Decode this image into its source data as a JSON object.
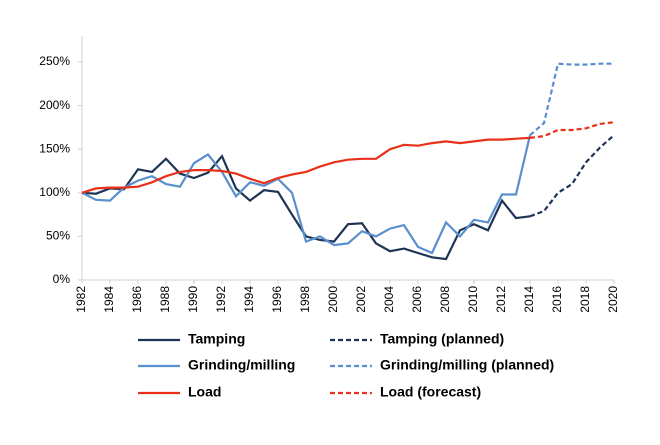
{
  "chart_data": {
    "type": "line",
    "x": [
      1982,
      1983,
      1984,
      1985,
      1986,
      1987,
      1988,
      1989,
      1990,
      1991,
      1992,
      1993,
      1994,
      1995,
      1996,
      1997,
      1998,
      1999,
      2000,
      2001,
      2002,
      2003,
      2004,
      2005,
      2006,
      2007,
      2008,
      2009,
      2010,
      2011,
      2012,
      2013,
      2014,
      2015,
      2016,
      2017,
      2018,
      2019,
      2020
    ],
    "xlim": [
      1982,
      2020
    ],
    "xticks": [
      1982,
      1984,
      1986,
      1988,
      1990,
      1992,
      1994,
      1996,
      1998,
      2000,
      2002,
      2004,
      2006,
      2008,
      2010,
      2012,
      2014,
      2016,
      2018,
      2020
    ],
    "ylim": [
      0,
      250
    ],
    "yticks": [
      {
        "value": 0,
        "label": "0%"
      },
      {
        "value": 50,
        "label": "50%"
      },
      {
        "value": 100,
        "label": "100%"
      },
      {
        "value": 150,
        "label": "150%"
      },
      {
        "value": 200,
        "label": "200%"
      },
      {
        "value": 250,
        "label": "250%"
      }
    ],
    "grid": false,
    "legend": "bottom",
    "series": [
      {
        "name": "Tamping",
        "color": "#1f3454",
        "dashed": false,
        "values": [
          100,
          99,
          105,
          104,
          127,
          124,
          139,
          122,
          117,
          123,
          142,
          105,
          91,
          103,
          101,
          75,
          50,
          46,
          44,
          64,
          65,
          42,
          33,
          36,
          31,
          26,
          24,
          57,
          64,
          57,
          91,
          71,
          73,
          null,
          null,
          null,
          null,
          null,
          null
        ]
      },
      {
        "name": "Tamping (planned)",
        "color": "#1f3454",
        "dashed": true,
        "values": [
          null,
          null,
          null,
          null,
          null,
          null,
          null,
          null,
          null,
          null,
          null,
          null,
          null,
          null,
          null,
          null,
          null,
          null,
          null,
          null,
          null,
          null,
          null,
          null,
          null,
          null,
          null,
          null,
          null,
          null,
          null,
          null,
          73,
          79,
          100,
          110,
          135,
          152,
          166
        ]
      },
      {
        "name": "Grinding/milling",
        "color": "#5a8fcf",
        "dashed": false,
        "values": [
          100,
          92,
          91,
          106,
          114,
          119,
          110,
          107,
          134,
          144,
          124,
          96,
          112,
          108,
          116,
          100,
          44,
          50,
          40,
          42,
          56,
          50,
          59,
          63,
          38,
          31,
          66,
          50,
          69,
          66,
          98,
          98,
          166,
          null,
          null,
          null,
          null,
          null,
          null
        ]
      },
      {
        "name": "Grinding/milling (planned)",
        "color": "#5a8fcf",
        "dashed": true,
        "values": [
          null,
          null,
          null,
          null,
          null,
          null,
          null,
          null,
          null,
          null,
          null,
          null,
          null,
          null,
          null,
          null,
          null,
          null,
          null,
          null,
          null,
          null,
          null,
          null,
          null,
          null,
          null,
          null,
          null,
          null,
          null,
          null,
          166,
          180,
          248,
          247,
          247,
          248,
          248
        ]
      },
      {
        "name": "Load",
        "color": "#e8311a",
        "dashed": false,
        "values": [
          100,
          105,
          106,
          106,
          107,
          112,
          119,
          124,
          126,
          126,
          125,
          122,
          116,
          111,
          117,
          121,
          124,
          130,
          135,
          138,
          139,
          139,
          150,
          155,
          154,
          157,
          159,
          157,
          159,
          161,
          161,
          162,
          163,
          null,
          null,
          null,
          null,
          null,
          null
        ]
      },
      {
        "name": "Load (forecast)",
        "color": "#e8311a",
        "dashed": true,
        "values": [
          null,
          null,
          null,
          null,
          null,
          null,
          null,
          null,
          null,
          null,
          null,
          null,
          null,
          null,
          null,
          null,
          null,
          null,
          null,
          null,
          null,
          null,
          null,
          null,
          null,
          null,
          null,
          null,
          null,
          null,
          null,
          null,
          163,
          165,
          172,
          172,
          174,
          179,
          181
        ]
      }
    ]
  }
}
